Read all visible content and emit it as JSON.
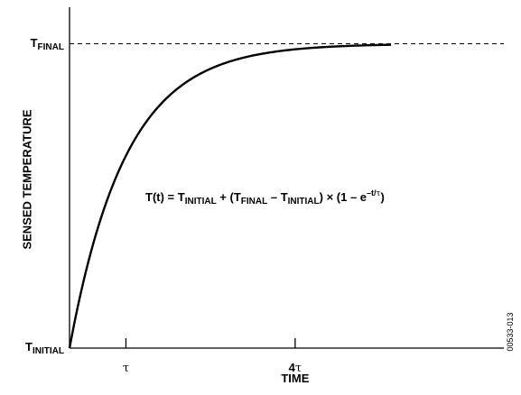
{
  "chart_data": {
    "type": "line",
    "title": "",
    "xlabel": "TIME",
    "ylabel": "SENSED TEMPERATURE",
    "x_ticks": [
      {
        "x": 1,
        "label": "τ"
      },
      {
        "x": 4,
        "label": "4τ"
      }
    ],
    "y_ticks": [
      {
        "y": 0,
        "label_main": "T",
        "label_sub": "INITIAL"
      },
      {
        "y": 1,
        "label_main": "T",
        "label_sub": "FINAL"
      }
    ],
    "xlim": [
      0,
      7.7
    ],
    "ylim": [
      0,
      1.12
    ],
    "grid": false,
    "series": [
      {
        "function": "1 - exp(-x)",
        "x_range": [
          0,
          5.7
        ],
        "color": "#000000"
      }
    ],
    "reference_line": {
      "y": 1,
      "style": "dashed"
    },
    "annotation": {
      "parts": [
        {
          "t": "T(t) = T"
        },
        {
          "t": "INITIAL",
          "sub": true
        },
        {
          "t": " + (T"
        },
        {
          "t": "FINAL",
          "sub": true
        },
        {
          "t": " – T"
        },
        {
          "t": "INITIAL",
          "sub": true
        },
        {
          "t": ") × (1 – e"
        },
        {
          "t": "–t/τ",
          "sup": true
        },
        {
          "t": ")"
        }
      ]
    },
    "figure_id": "00533-013"
  }
}
